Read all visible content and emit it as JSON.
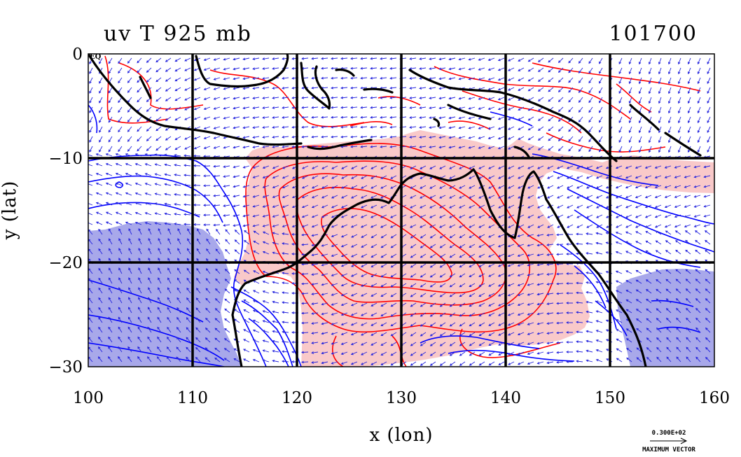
{
  "chart_data": {
    "type": "contour",
    "title_left": "uv T 925 mb",
    "title_right": "101700",
    "xlabel": "x (lon)",
    "ylabel": "y (lat)",
    "xlim": [
      100,
      160
    ],
    "ylim": [
      -30,
      0
    ],
    "x_ticks": [
      100,
      110,
      120,
      130,
      140,
      150,
      160
    ],
    "y_ticks": [
      0,
      -10,
      -20,
      -30
    ],
    "x_tick_labels": [
      "100",
      "110",
      "120",
      "130",
      "140",
      "150",
      "160"
    ],
    "y_tick_labels": [
      "0",
      "−10",
      "−20",
      "−30"
    ],
    "corner_label": "EQ",
    "grid": true,
    "vector_key": {
      "magnitude_label": "0.300E+02",
      "caption": "MAXIMUM VECTOR"
    },
    "colors": {
      "warm_fill": "#f9c9c9",
      "cold_fill": "#a8a8ea",
      "warm_contour": "#ff0000",
      "cold_contour": "#0000ff",
      "vector": "#2222dd",
      "coast": "#000000"
    }
  }
}
